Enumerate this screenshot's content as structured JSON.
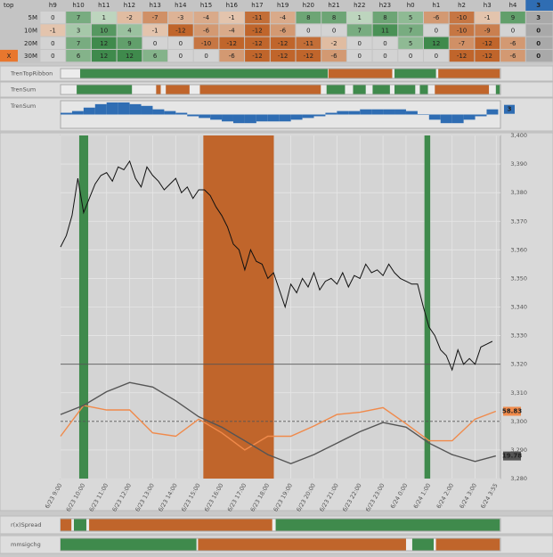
{
  "table": {
    "corner": "top",
    "columns": [
      "h9",
      "h10",
      "h11",
      "h12",
      "h13",
      "h14",
      "h15",
      "h16",
      "h17",
      "h19",
      "h20",
      "h21",
      "h22",
      "h23",
      "h0",
      "h1",
      "h2",
      "h3",
      "h4",
      "3"
    ],
    "rows": [
      {
        "label": "5M",
        "values": [
          0,
          7,
          1,
          -2,
          -7,
          -3,
          -4,
          -1,
          -11,
          -4,
          8,
          8,
          1,
          8,
          5,
          -6,
          -10,
          -1,
          9,
          3
        ]
      },
      {
        "label": "10M",
        "values": [
          -1,
          3,
          10,
          4,
          -1,
          -12,
          -6,
          -4,
          -12,
          -6,
          0,
          0,
          7,
          11,
          7,
          0,
          -10,
          -9,
          0,
          0
        ]
      },
      {
        "label": "20M",
        "values": [
          0,
          7,
          12,
          9,
          0,
          0,
          -10,
          -12,
          -12,
          -12,
          -11,
          -2,
          0,
          0,
          5,
          12,
          -7,
          -12,
          -6,
          0
        ]
      },
      {
        "label": "30M",
        "marker": "X",
        "values": [
          0,
          6,
          12,
          12,
          6,
          0,
          0,
          -6,
          -12,
          -12,
          -12,
          -6,
          0,
          0,
          0,
          0,
          -12,
          -12,
          -6,
          0
        ]
      }
    ]
  },
  "chart_data": [
    {
      "type": "ribbon",
      "title": "TrenTopRibbon",
      "xlim": [
        0,
        19.1
      ],
      "colors": {
        "up": "#3f8a4c",
        "down": "#c0652b"
      },
      "segments": [
        {
          "start": 0.85,
          "end": 11.6,
          "state": "up"
        },
        {
          "start": 11.63,
          "end": 14.4,
          "state": "down"
        },
        {
          "start": 14.5,
          "end": 16.3,
          "state": "up"
        },
        {
          "start": 16.4,
          "end": 19.07,
          "state": "down"
        }
      ]
    },
    {
      "type": "ribbon",
      "title": "TrenSum",
      "xlim": [
        0,
        19.1
      ],
      "colors": {
        "up": "#3f8a4c",
        "down": "#c0652b"
      },
      "segments": [
        {
          "start": 0.7,
          "end": 3.1,
          "state": "up"
        },
        {
          "start": 4.15,
          "end": 4.35,
          "state": "down"
        },
        {
          "start": 4.57,
          "end": 5.6,
          "state": "down"
        },
        {
          "start": 6.05,
          "end": 11.3,
          "state": "down"
        },
        {
          "start": 11.55,
          "end": 12.35,
          "state": "up"
        },
        {
          "start": 12.7,
          "end": 13.25,
          "state": "up"
        },
        {
          "start": 13.55,
          "end": 14.3,
          "state": "up"
        },
        {
          "start": 14.5,
          "end": 15.4,
          "state": "up"
        },
        {
          "start": 15.6,
          "end": 15.95,
          "state": "up"
        },
        {
          "start": 16.25,
          "end": 18.6,
          "state": "down"
        },
        {
          "start": 18.9,
          "end": 19.07,
          "state": "up"
        }
      ]
    },
    {
      "type": "histogram",
      "title": "TrenSum",
      "xlim": [
        0,
        19.1
      ],
      "ylim": [
        -8,
        8
      ],
      "color": "#2f6db3",
      "x": [
        0,
        0.5,
        1,
        1.5,
        2,
        2.5,
        3,
        3.5,
        4,
        4.5,
        5,
        5.5,
        6,
        6.5,
        7,
        7.5,
        8,
        8.5,
        9,
        9.5,
        10,
        10.5,
        11,
        11.5,
        12,
        12.5,
        13,
        13.5,
        14,
        14.5,
        15,
        15.5,
        16,
        16.5,
        17,
        17.5,
        18,
        18.5
      ],
      "values": [
        1,
        2,
        4,
        6,
        7,
        7,
        6,
        5,
        3,
        2,
        1,
        -1,
        -2,
        -3,
        -4,
        -5,
        -5,
        -4,
        -4,
        -4,
        -3,
        -2,
        -1,
        1,
        2,
        2,
        3,
        3,
        3,
        3,
        2,
        0,
        -3,
        -5,
        -5,
        -3,
        -1,
        3
      ],
      "end_label": "3"
    },
    {
      "type": "line",
      "xlim": [
        0,
        19.1
      ],
      "ylim": [
        3280,
        3400
      ],
      "y2lim": [
        0,
        300
      ],
      "grid": true,
      "xticks": [
        {
          "value": 0,
          "label": "6/23 9:00"
        },
        {
          "value": 1,
          "label": "6/23 10:00"
        },
        {
          "value": 2,
          "label": "6/23 11:00"
        },
        {
          "value": 3,
          "label": "6/23 12:00"
        },
        {
          "value": 4,
          "label": "6/23 13:00"
        },
        {
          "value": 5,
          "label": "6/23 14:00"
        },
        {
          "value": 6,
          "label": "6/23 15:00"
        },
        {
          "value": 7,
          "label": "6/23 16:00"
        },
        {
          "value": 8,
          "label": "6/23 17:00"
        },
        {
          "value": 9,
          "label": "6/23 18:00"
        },
        {
          "value": 10,
          "label": "6/23 19:00"
        },
        {
          "value": 11,
          "label": "6/23 20:00"
        },
        {
          "value": 12,
          "label": "6/23 21:00"
        },
        {
          "value": 13,
          "label": "6/23 22:00"
        },
        {
          "value": 14,
          "label": "6/23 23:00"
        },
        {
          "value": 15,
          "label": "6/24 0:00"
        },
        {
          "value": 16,
          "label": "6/24 1:00"
        },
        {
          "value": 17,
          "label": "6/24 2:00"
        },
        {
          "value": 18,
          "label": "6/24 3:00"
        },
        {
          "value": 18.917,
          "label": "6/24 3:55"
        }
      ],
      "yticks": [
        {
          "value": 3280,
          "label": "3,280"
        },
        {
          "value": 3290,
          "label": "3,290"
        },
        {
          "value": 3300,
          "label": "3,300"
        },
        {
          "value": 3310,
          "label": "3,310"
        },
        {
          "value": 3320,
          "label": "3,320"
        },
        {
          "value": 3330,
          "label": "3,330"
        },
        {
          "value": 3340,
          "label": "3,340"
        },
        {
          "value": 3350,
          "label": "3,350"
        },
        {
          "value": 3360,
          "label": "3,360"
        },
        {
          "value": 3370,
          "label": "3,370"
        },
        {
          "value": 3380,
          "label": "3,380"
        },
        {
          "value": 3390,
          "label": "3,390"
        },
        {
          "value": 3400,
          "label": "3,400"
        }
      ],
      "bands": [
        {
          "start": 0.81,
          "end": 1.2,
          "color": "#3f8a4c"
        },
        {
          "start": 6.2,
          "end": 9.26,
          "color": "#c0652b"
        },
        {
          "start": 15.8,
          "end": 16.05,
          "color": "#3f8a4c"
        }
      ],
      "y2_lines": [
        {
          "value": 100,
          "style": "solid"
        },
        {
          "value": 50,
          "style": "dashed"
        }
      ],
      "series": [
        {
          "color": "#111111",
          "x": [
            0,
            0.25,
            0.5,
            0.75,
            1,
            1.25,
            1.5,
            1.75,
            2,
            2.25,
            2.5,
            2.75,
            3,
            3.25,
            3.5,
            3.75,
            4,
            4.25,
            4.5,
            4.75,
            5,
            5.25,
            5.5,
            5.75,
            6,
            6.25,
            6.5,
            6.75,
            7,
            7.25,
            7.5,
            7.75,
            8,
            8.25,
            8.5,
            8.75,
            9,
            9.25,
            9.5,
            9.75,
            10,
            10.25,
            10.5,
            10.75,
            11,
            11.25,
            11.5,
            11.75,
            12,
            12.25,
            12.5,
            12.75,
            13,
            13.25,
            13.5,
            13.75,
            14,
            14.25,
            14.5,
            14.75,
            15,
            15.25,
            15.5,
            15.75,
            16,
            16.25,
            16.5,
            16.75,
            17,
            17.25,
            17.5,
            17.75,
            18,
            18.25,
            18.5,
            18.75
          ],
          "values": [
            3361,
            3365,
            3372,
            3385,
            3373,
            3378,
            3383,
            3386,
            3387,
            3384,
            3389,
            3388,
            3391,
            3385,
            3382,
            3389,
            3386,
            3384,
            3381,
            3383,
            3385,
            3380,
            3382,
            3378,
            3381,
            3381,
            3379,
            3375,
            3372,
            3368,
            3362,
            3360,
            3353,
            3360,
            3356,
            3355,
            3350,
            3352,
            3346,
            3340,
            3348,
            3345,
            3350,
            3347,
            3352,
            3346,
            3349,
            3350,
            3348,
            3352,
            3347,
            3351,
            3350,
            3355,
            3352,
            3353,
            3351,
            3355,
            3352,
            3350,
            3349,
            3348,
            3348,
            3340,
            3333,
            3330,
            3325,
            3323,
            3318,
            3325,
            3320,
            3322,
            3320,
            3326,
            3327,
            3328
          ]
        },
        {
          "color": "#f08a4b",
          "axis": "y2",
          "end_label": "58.83",
          "x": [
            0,
            1,
            2,
            3,
            4,
            5,
            6,
            7,
            8,
            9,
            10,
            11,
            12,
            13,
            14,
            15,
            16,
            17,
            18,
            18.9
          ],
          "values": [
            37,
            64,
            60,
            60,
            40,
            37,
            52,
            40,
            25,
            37,
            37,
            46,
            56,
            58,
            62,
            48,
            33,
            33,
            52,
            58.83
          ]
        },
        {
          "color": "#555555",
          "axis": "y2",
          "end_label": "19.78",
          "x": [
            0,
            1,
            2,
            3,
            4,
            5,
            6,
            7,
            8,
            9,
            10,
            11,
            12,
            13,
            14,
            15,
            16,
            17,
            18,
            18.9
          ],
          "values": [
            56,
            64,
            76,
            84,
            80,
            68,
            54,
            45,
            33,
            21,
            13,
            21,
            31,
            41,
            49,
            45,
            31,
            21,
            15,
            19.78
          ]
        }
      ]
    },
    {
      "type": "ribbon",
      "title": "r(x)Spread",
      "xlim": [
        0,
        19.1
      ],
      "colors": {
        "up": "#3f8a4c",
        "down": "#c0652b"
      },
      "segments": [
        {
          "start": 0,
          "end": 0.47,
          "state": "down"
        },
        {
          "start": 0.58,
          "end": 1.12,
          "state": "up"
        },
        {
          "start": 1.24,
          "end": 9.19,
          "state": "down"
        },
        {
          "start": 9.34,
          "end": 19.07,
          "state": "up"
        }
      ]
    },
    {
      "type": "ribbon",
      "title": "mmsigchg",
      "xlim": [
        0,
        19.1
      ],
      "colors": {
        "up": "#3f8a4c",
        "down": "#c0652b"
      },
      "segments": [
        {
          "start": 0,
          "end": 5.9,
          "state": "up"
        },
        {
          "start": 5.97,
          "end": 15.0,
          "state": "down"
        },
        {
          "start": 15.27,
          "end": 16.2,
          "state": "up"
        },
        {
          "start": 16.3,
          "end": 19.07,
          "state": "down"
        }
      ]
    }
  ]
}
